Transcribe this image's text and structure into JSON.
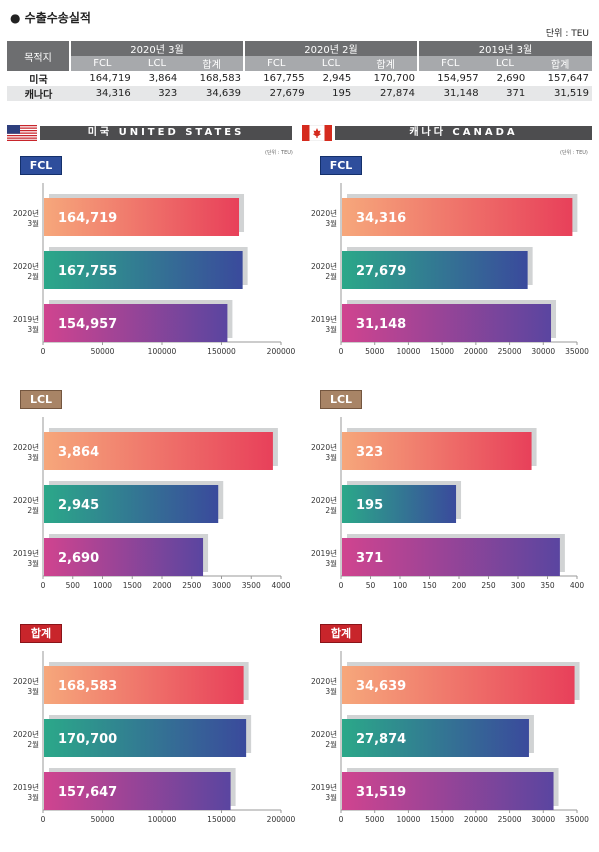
{
  "header": {
    "title": "수출수송실적",
    "unit": "단위 : TEU"
  },
  "table": {
    "dest_label": "목적지",
    "periods": [
      "2020년 3월",
      "2020년 2월",
      "2019년 3월"
    ],
    "cols": [
      "FCL",
      "LCL",
      "합계",
      "FCL",
      "LCL",
      "합계",
      "FCL",
      "LCL",
      "합계"
    ],
    "rows": [
      {
        "name": "미국",
        "values": [
          "164,719",
          "3,864",
          "168,583",
          "167,755",
          "2,945",
          "170,700",
          "154,957",
          "2,690",
          "157,647"
        ]
      },
      {
        "name": "캐나다",
        "values": [
          "34,316",
          "323",
          "34,639",
          "27,679",
          "195",
          "27,874",
          "31,148",
          "371",
          "31,519"
        ]
      }
    ]
  },
  "panels": {
    "us_title": "미국 UNITED STATES",
    "ca_title": "캐나다 CANADA",
    "small_unit": "(단위 : TEU)",
    "badges": {
      "fcl": "FCL",
      "lcl": "LCL",
      "sum": "합계"
    }
  },
  "colors": {
    "row1": [
      "#f6a77b",
      "#e8405a"
    ],
    "row2": [
      "#2ba889",
      "#3a4a9c"
    ],
    "row3": [
      "#d0448f",
      "#5a45a0"
    ]
  },
  "chart_data": [
    {
      "type": "bar",
      "orientation": "horizontal",
      "region": "미국",
      "category": "FCL",
      "categories": [
        [
          "2020년",
          "3월"
        ],
        [
          "2020년",
          "2월"
        ],
        [
          "2019년",
          "3월"
        ]
      ],
      "values": [
        164719,
        167755,
        154957
      ],
      "labels": [
        "164,719",
        "167,755",
        "154,957"
      ],
      "xlim": [
        0,
        200000
      ],
      "ticks": [
        0,
        50000,
        100000,
        150000,
        200000
      ]
    },
    {
      "type": "bar",
      "orientation": "horizontal",
      "region": "캐나다",
      "category": "FCL",
      "categories": [
        [
          "2020년",
          "3월"
        ],
        [
          "2020년",
          "2월"
        ],
        [
          "2019년",
          "3월"
        ]
      ],
      "values": [
        34316,
        27679,
        31148
      ],
      "labels": [
        "34,316",
        "27,679",
        "31,148"
      ],
      "xlim": [
        0,
        35000
      ],
      "ticks": [
        0,
        5000,
        10000,
        15000,
        20000,
        25000,
        30000,
        35000
      ]
    },
    {
      "type": "bar",
      "orientation": "horizontal",
      "region": "미국",
      "category": "LCL",
      "categories": [
        [
          "2020년",
          "3월"
        ],
        [
          "2020년",
          "2월"
        ],
        [
          "2019년",
          "3월"
        ]
      ],
      "values": [
        3864,
        2945,
        2690
      ],
      "labels": [
        "3,864",
        "2,945",
        "2,690"
      ],
      "xlim": [
        0,
        4000
      ],
      "ticks": [
        0,
        500,
        1000,
        1500,
        2000,
        2500,
        3000,
        3500,
        4000
      ]
    },
    {
      "type": "bar",
      "orientation": "horizontal",
      "region": "캐나다",
      "category": "LCL",
      "categories": [
        [
          "2020년",
          "3월"
        ],
        [
          "2020년",
          "2월"
        ],
        [
          "2019년",
          "3월"
        ]
      ],
      "values": [
        323,
        195,
        371
      ],
      "labels": [
        "323",
        "195",
        "371"
      ],
      "xlim": [
        0,
        400
      ],
      "ticks": [
        0,
        50,
        100,
        150,
        200,
        250,
        300,
        350,
        400
      ]
    },
    {
      "type": "bar",
      "orientation": "horizontal",
      "region": "미국",
      "category": "합계",
      "categories": [
        [
          "2020년",
          "3월"
        ],
        [
          "2020년",
          "2월"
        ],
        [
          "2019년",
          "3월"
        ]
      ],
      "values": [
        168583,
        170700,
        157647
      ],
      "labels": [
        "168,583",
        "170,700",
        "157,647"
      ],
      "xlim": [
        0,
        200000
      ],
      "ticks": [
        0,
        50000,
        100000,
        150000,
        200000
      ]
    },
    {
      "type": "bar",
      "orientation": "horizontal",
      "region": "캐나다",
      "category": "합계",
      "categories": [
        [
          "2020년",
          "3월"
        ],
        [
          "2020년",
          "2월"
        ],
        [
          "2019년",
          "3월"
        ]
      ],
      "values": [
        34639,
        27874,
        31519
      ],
      "labels": [
        "34,639",
        "27,874",
        "31,519"
      ],
      "xlim": [
        0,
        35000
      ],
      "ticks": [
        0,
        5000,
        10000,
        15000,
        20000,
        25000,
        30000,
        35000
      ]
    }
  ]
}
